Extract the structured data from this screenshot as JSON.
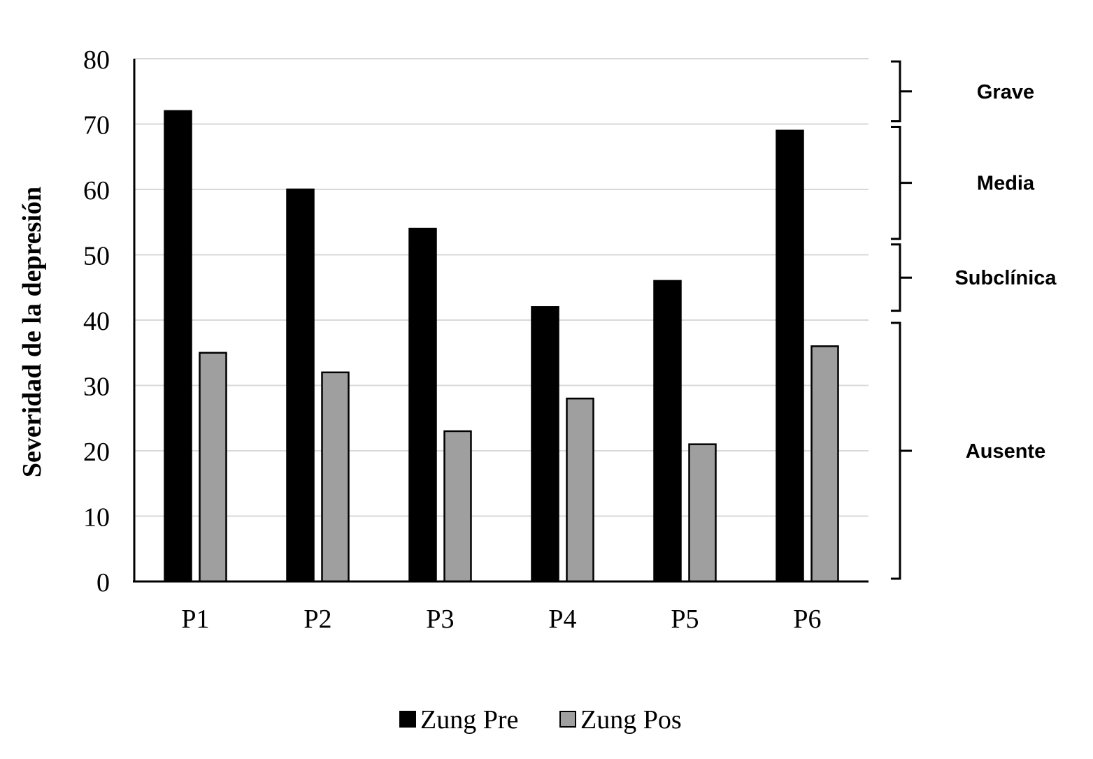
{
  "chart_data": {
    "type": "bar",
    "title": "",
    "xlabel": "",
    "ylabel": "Severidad de la depresión",
    "ylim": [
      0,
      80
    ],
    "yticks": [
      0,
      10,
      20,
      30,
      40,
      50,
      60,
      70,
      80
    ],
    "grid": true,
    "legend_position": "bottom",
    "categories": [
      "P1",
      "P2",
      "P3",
      "P4",
      "P5",
      "P6"
    ],
    "series": [
      {
        "name": "Zung Pre",
        "color": "#000000",
        "values": [
          72,
          60,
          54,
          42,
          46,
          69
        ]
      },
      {
        "name": "Zung Pos",
        "color": "#a09f9f",
        "values": [
          35,
          32,
          23,
          28,
          21,
          36
        ]
      }
    ],
    "severity_bands": [
      {
        "label": "Grave",
        "from": 70,
        "to": 80
      },
      {
        "label": "Media",
        "from": 52,
        "to": 70
      },
      {
        "label": "Subclínica",
        "from": 41,
        "to": 52
      },
      {
        "label": "Ausente",
        "from": 0,
        "to": 40
      }
    ]
  }
}
